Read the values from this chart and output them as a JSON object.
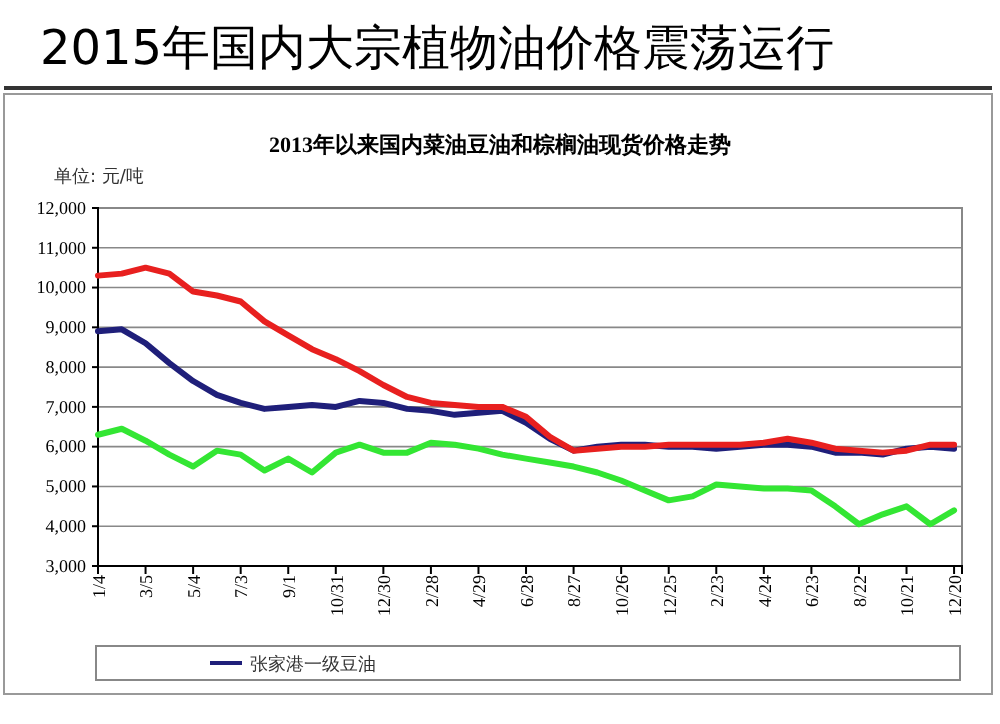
{
  "chart_data": {
    "type": "line",
    "title": "2015年国内大宗植物油价格震荡运行",
    "subtitle": "2013年以来国内菜油豆油和棕榈油现货价格走势",
    "ylabel": "单位: 元/吨",
    "xlim": [
      "2013-01-04",
      "2015-12-30"
    ],
    "xticks": [
      {
        "value": "2013-01-04",
        "label": "1/4"
      },
      {
        "value": "2013-03-05",
        "label": "3/5"
      },
      {
        "value": "2013-05-04",
        "label": "5/4"
      },
      {
        "value": "2013-07-03",
        "label": "7/3"
      },
      {
        "value": "2013-09-01",
        "label": "9/1"
      },
      {
        "value": "2013-10-31",
        "label": "10/31"
      },
      {
        "value": "2013-12-30",
        "label": "12/30"
      },
      {
        "value": "2014-02-28",
        "label": "2/28"
      },
      {
        "value": "2014-04-29",
        "label": "4/29"
      },
      {
        "value": "2014-06-28",
        "label": "6/28"
      },
      {
        "value": "2014-08-27",
        "label": "8/27"
      },
      {
        "value": "2014-10-26",
        "label": "10/26"
      },
      {
        "value": "2014-12-25",
        "label": "12/25"
      },
      {
        "value": "2015-02-23",
        "label": "2/23"
      },
      {
        "value": "2015-04-24",
        "label": "4/24"
      },
      {
        "value": "2015-06-23",
        "label": "6/23"
      },
      {
        "value": "2015-08-22",
        "label": "8/22"
      },
      {
        "value": "2015-10-21",
        "label": "10/21"
      },
      {
        "value": "2015-12-20",
        "label": "12/20"
      }
    ],
    "ylim": [
      3000,
      12000
    ],
    "yticks": [
      {
        "value": 3000,
        "label": "3,000"
      },
      {
        "value": 4000,
        "label": "4,000"
      },
      {
        "value": 5000,
        "label": "5,000"
      },
      {
        "value": 6000,
        "label": "6,000"
      },
      {
        "value": 7000,
        "label": "7,000"
      },
      {
        "value": 8000,
        "label": "8,000"
      },
      {
        "value": 9000,
        "label": "9,000"
      },
      {
        "value": 10000,
        "label": "10,000"
      },
      {
        "value": 11000,
        "label": "11,000"
      },
      {
        "value": 12000,
        "label": "12,000"
      }
    ],
    "grid": "y",
    "legend": "bottom",
    "marker": "none",
    "line_style": "solid",
    "x": [
      "2013-01-04",
      "2013-02-03",
      "2013-03-05",
      "2013-04-04",
      "2013-05-04",
      "2013-06-03",
      "2013-07-03",
      "2013-08-02",
      "2013-09-01",
      "2013-10-01",
      "2013-10-31",
      "2013-11-30",
      "2013-12-30",
      "2014-01-29",
      "2014-02-28",
      "2014-03-30",
      "2014-04-29",
      "2014-05-29",
      "2014-06-28",
      "2014-07-28",
      "2014-08-27",
      "2014-09-26",
      "2014-10-26",
      "2014-11-25",
      "2014-12-25",
      "2015-01-24",
      "2015-02-23",
      "2015-03-25",
      "2015-04-24",
      "2015-05-24",
      "2015-06-23",
      "2015-07-23",
      "2015-08-22",
      "2015-09-21",
      "2015-10-21",
      "2015-11-20",
      "2015-12-20"
    ],
    "series": [
      {
        "name": "张家港一级豆油",
        "color": "#1f1f7a",
        "values": [
          8900,
          8950,
          8600,
          8100,
          7650,
          7300,
          7100,
          6950,
          7000,
          7050,
          7000,
          7150,
          7100,
          6950,
          6900,
          6800,
          6850,
          6900,
          6600,
          6200,
          5900,
          6000,
          6050,
          6050,
          6000,
          6000,
          5950,
          6000,
          6050,
          6050,
          6000,
          5850,
          5850,
          5800,
          5950,
          6000,
          5950
        ]
      },
      {
        "color": "#e8201f",
        "values": [
          10300,
          10350,
          10500,
          10350,
          9900,
          9800,
          9650,
          9150,
          8800,
          8450,
          8200,
          7900,
          7550,
          7250,
          7100,
          7050,
          7000,
          7000,
          6750,
          6250,
          5900,
          5950,
          6000,
          6000,
          6050,
          6050,
          6050,
          6050,
          6100,
          6200,
          6100,
          5950,
          5900,
          5850,
          5900,
          6050,
          6050
        ]
      },
      {
        "color": "#33e633",
        "values": [
          6300,
          6450,
          6150,
          5800,
          5500,
          5900,
          5800,
          5400,
          5700,
          5350,
          5850,
          6050,
          5850,
          5850,
          6100,
          6050,
          5950,
          5800,
          5700,
          5600,
          5500,
          5350,
          5150,
          4900,
          4650,
          4750,
          5050,
          5000,
          4950,
          4950,
          4900,
          4500,
          4050,
          4300,
          4500,
          4050,
          4400
        ]
      }
    ]
  }
}
